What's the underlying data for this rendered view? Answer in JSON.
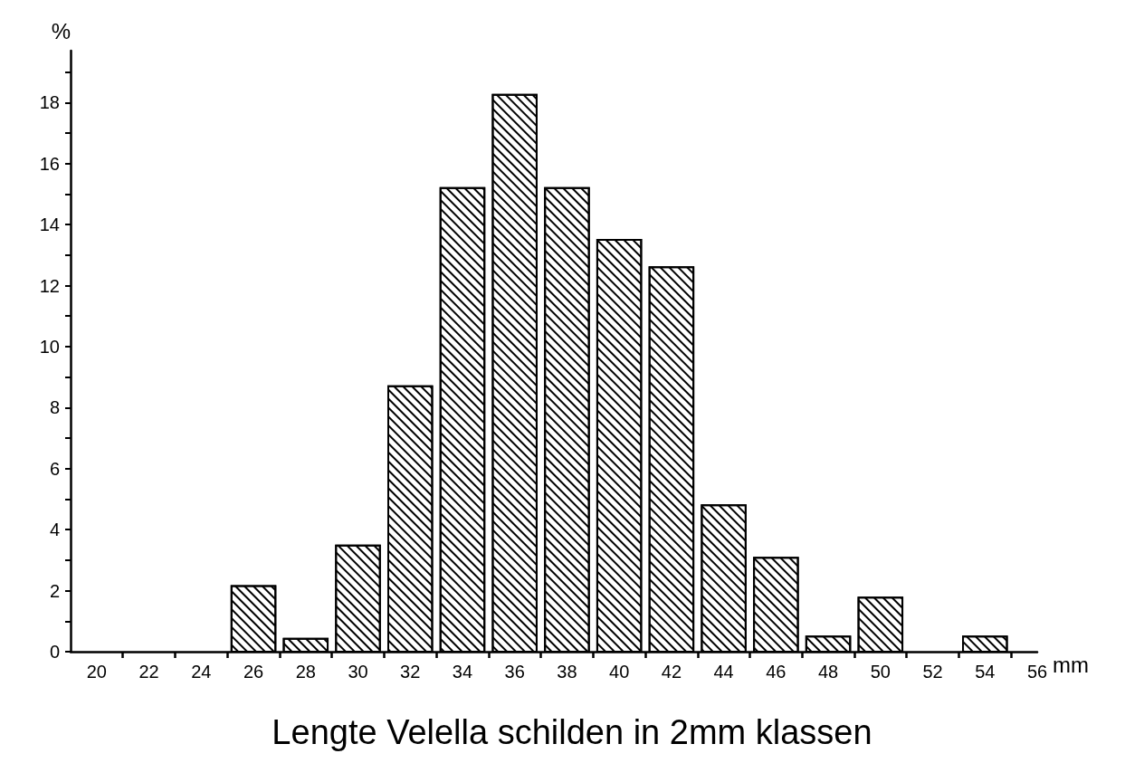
{
  "chart_data": {
    "type": "histogram",
    "title": "Lengte Velella schilden in 2mm klassen",
    "xlabel": "mm",
    "ylabel": "%",
    "bins": [
      19,
      21,
      23,
      25,
      27,
      29,
      31,
      33,
      35,
      37,
      39,
      41,
      43,
      45,
      47,
      49,
      51,
      53,
      55
    ],
    "values": [
      0,
      0,
      0,
      2.15,
      0.42,
      3.48,
      8.7,
      15.2,
      18.25,
      15.2,
      13.5,
      12.6,
      4.8,
      3.08,
      0.5,
      1.77,
      0,
      0.5
    ],
    "color": "#000000",
    "xlim": [
      19,
      56
    ],
    "xticks": [
      20,
      {
        "value": 21,
        "label": null
      },
      22,
      {
        "value": 23,
        "label": null
      },
      24,
      {
        "value": 25,
        "label": null
      },
      26,
      {
        "value": 27,
        "label": null
      },
      28,
      {
        "value": 29,
        "label": null
      },
      30,
      {
        "value": 31,
        "label": null
      },
      32,
      {
        "value": 33,
        "label": null
      },
      34,
      {
        "value": 35,
        "label": null
      },
      36,
      {
        "value": 37,
        "label": null
      },
      38,
      {
        "value": 39,
        "label": null
      },
      40,
      {
        "value": 41,
        "label": null
      },
      42,
      {
        "value": 43,
        "label": null
      },
      44,
      {
        "value": 45,
        "label": null
      },
      46,
      {
        "value": 47,
        "label": null
      },
      48,
      {
        "value": 49,
        "label": null
      },
      50,
      {
        "value": 51,
        "label": null
      },
      52,
      {
        "value": 53,
        "label": null
      },
      54,
      {
        "value": 55,
        "label": null
      },
      56
    ],
    "ylim": [
      0,
      19.7
    ],
    "yticks": [
      0,
      {
        "value": 1,
        "label": null
      },
      2,
      {
        "value": 3,
        "label": null
      },
      4,
      {
        "value": 5,
        "label": null
      },
      6,
      {
        "value": 7,
        "label": null
      },
      8,
      {
        "value": 9,
        "label": null
      },
      10,
      {
        "value": 11,
        "label": null
      },
      12,
      {
        "value": 13,
        "label": null
      },
      14,
      {
        "value": 15,
        "label": null
      },
      16,
      {
        "value": 17,
        "label": null
      },
      18,
      {
        "value": 19,
        "label": null
      }
    ],
    "grid": false
  }
}
